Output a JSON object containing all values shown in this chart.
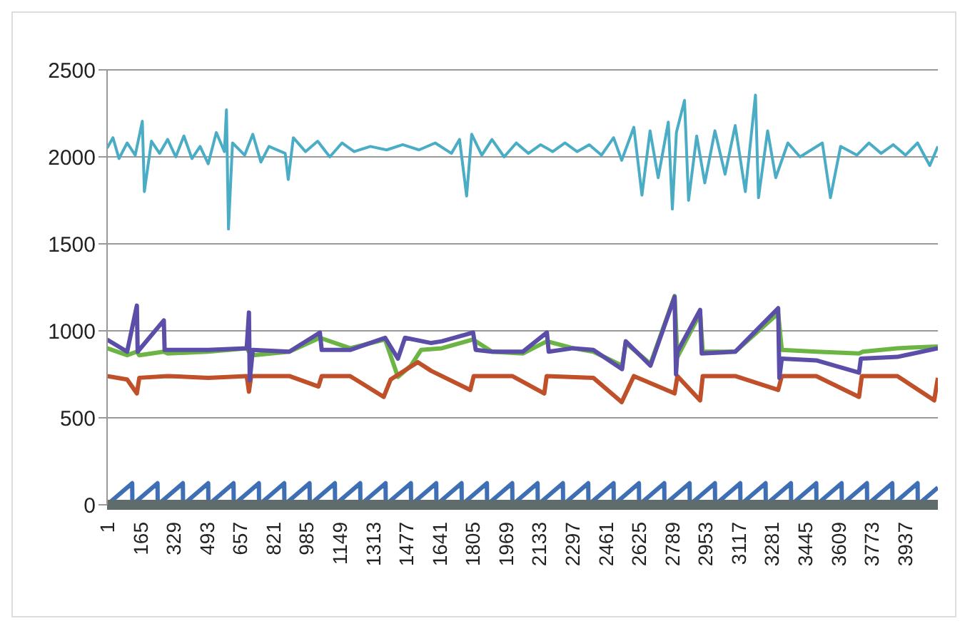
{
  "chart_data": {
    "type": "line",
    "xlim": [
      1,
      4100
    ],
    "xticks": [
      1,
      165,
      329,
      493,
      657,
      821,
      985,
      1149,
      1313,
      1477,
      1641,
      1805,
      1969,
      2133,
      2297,
      2461,
      2625,
      2789,
      2953,
      3117,
      3281,
      3445,
      3609,
      3773,
      3937
    ],
    "ylim": [
      0,
      2500
    ],
    "yticks": [
      0,
      500,
      1000,
      1500,
      2000,
      2500
    ],
    "grid": "y",
    "legend": false,
    "marker": "none",
    "line_style": "solid",
    "series": [
      {
        "color": "#4bacc6",
        "x": [
          1,
          30,
          60,
          100,
          140,
          175,
          185,
          220,
          260,
          300,
          340,
          380,
          420,
          460,
          500,
          540,
          580,
          590,
          600,
          620,
          680,
          720,
          760,
          800,
          880,
          895,
          920,
          980,
          1040,
          1100,
          1160,
          1220,
          1300,
          1380,
          1460,
          1540,
          1620,
          1700,
          1740,
          1775,
          1800,
          1850,
          1900,
          1960,
          2020,
          2080,
          2140,
          2200,
          2260,
          2320,
          2380,
          2440,
          2500,
          2540,
          2600,
          2640,
          2680,
          2720,
          2770,
          2790,
          2810,
          2850,
          2870,
          2910,
          2950,
          3000,
          3050,
          3100,
          3150,
          3200,
          3215,
          3260,
          3300,
          3360,
          3420,
          3530,
          3570,
          3620,
          3700,
          3760,
          3820,
          3880,
          3940,
          4000,
          4060,
          4100
        ],
        "values": [
          2050,
          2110,
          1990,
          2080,
          2010,
          2205,
          1800,
          2090,
          2020,
          2100,
          2000,
          2120,
          1990,
          2060,
          1960,
          2140,
          2030,
          2270,
          1585,
          2080,
          2010,
          2130,
          1970,
          2060,
          2020,
          1870,
          2110,
          2030,
          2090,
          2000,
          2080,
          2030,
          2060,
          2040,
          2070,
          2040,
          2080,
          2020,
          2100,
          1775,
          2130,
          2010,
          2100,
          2000,
          2080,
          2020,
          2070,
          2030,
          2080,
          2030,
          2070,
          2010,
          2110,
          1980,
          2170,
          1780,
          2150,
          1880,
          2200,
          1700,
          2140,
          2325,
          1750,
          2120,
          1850,
          2150,
          1900,
          2180,
          1800,
          2355,
          1765,
          2150,
          1880,
          2080,
          2000,
          2080,
          1765,
          2060,
          2010,
          2080,
          2020,
          2070,
          2010,
          2080,
          1950,
          2060
        ]
      },
      {
        "color": "#6cb444",
        "x": [
          1,
          100,
          148,
          160,
          281,
          300,
          500,
          690,
          701,
          720,
          900,
          1051,
          1200,
          1373,
          1436,
          1500,
          1550,
          1653,
          1807,
          1900,
          2052,
          2171,
          2300,
          2400,
          2542,
          2560,
          2682,
          2801,
          2815,
          2927,
          2940,
          3100,
          3312,
          3330,
          3500,
          3711,
          3730,
          3900,
          4100
        ],
        "values": [
          900,
          860,
          880,
          860,
          880,
          870,
          880,
          900,
          880,
          860,
          880,
          960,
          900,
          950,
          735,
          800,
          890,
          900,
          950,
          880,
          870,
          940,
          900,
          880,
          800,
          930,
          810,
          1200,
          850,
          1100,
          880,
          880,
          1100,
          890,
          880,
          870,
          880,
          900,
          910
        ]
      },
      {
        "color": "#c0502a",
        "x": [
          1,
          100,
          148,
          160,
          300,
          500,
          690,
          701,
          712,
          900,
          1044,
          1060,
          1200,
          1366,
          1400,
          1534,
          1600,
          1793,
          1810,
          2000,
          2158,
          2170,
          2400,
          2540,
          2600,
          2801,
          2815,
          2927,
          2940,
          3100,
          3312,
          3330,
          3500,
          3711,
          3725,
          3900,
          4082,
          4100
        ],
        "values": [
          740,
          720,
          640,
          730,
          740,
          730,
          740,
          650,
          740,
          740,
          680,
          740,
          740,
          620,
          720,
          820,
          770,
          660,
          740,
          740,
          640,
          740,
          730,
          590,
          740,
          640,
          740,
          600,
          740,
          740,
          660,
          740,
          740,
          620,
          740,
          740,
          600,
          730
        ]
      },
      {
        "color": "#5b4ea8",
        "x": [
          1,
          100,
          148,
          152,
          281,
          285,
          500,
          690,
          701,
          705,
          720,
          900,
          1051,
          1060,
          1200,
          1373,
          1436,
          1471,
          1600,
          1653,
          1807,
          1820,
          1900,
          2052,
          2171,
          2180,
          2300,
          2400,
          2542,
          2560,
          2682,
          2801,
          2808,
          2815,
          2927,
          2935,
          3100,
          3312,
          3318,
          3330,
          3500,
          3711,
          3720,
          3900,
          4100
        ],
        "values": [
          950,
          880,
          1145,
          880,
          1060,
          890,
          890,
          900,
          1105,
          715,
          890,
          880,
          990,
          890,
          890,
          960,
          840,
          960,
          930,
          940,
          990,
          890,
          880,
          880,
          990,
          880,
          900,
          890,
          780,
          940,
          800,
          1195,
          750,
          880,
          1120,
          870,
          880,
          1130,
          730,
          840,
          830,
          760,
          840,
          850,
          900
        ]
      },
      {
        "color": "#3e6fb4",
        "x": [
          1,
          125,
          126,
          250,
          251,
          375,
          376,
          500,
          501,
          625,
          626,
          750,
          751,
          875,
          876,
          1000,
          1001,
          1125,
          1126,
          1250,
          1251,
          1375,
          1376,
          1500,
          1501,
          1625,
          1626,
          1750,
          1751,
          1875,
          1876,
          2000,
          2001,
          2125,
          2126,
          2250,
          2251,
          2375,
          2376,
          2500,
          2501,
          2625,
          2626,
          2750,
          2751,
          2875,
          2876,
          3000,
          3001,
          3125,
          3126,
          3250,
          3251,
          3375,
          3376,
          3500,
          3501,
          3625,
          3626,
          3750,
          3751,
          3875,
          3876,
          4000,
          4001,
          4100
        ],
        "values": [
          0,
          124,
          0,
          124,
          0,
          124,
          0,
          124,
          0,
          124,
          0,
          124,
          0,
          124,
          0,
          124,
          0,
          124,
          0,
          124,
          0,
          124,
          0,
          124,
          0,
          124,
          0,
          124,
          0,
          124,
          0,
          124,
          0,
          124,
          0,
          124,
          0,
          124,
          0,
          124,
          0,
          124,
          0,
          124,
          0,
          124,
          0,
          124,
          0,
          124,
          0,
          124,
          0,
          124,
          0,
          124,
          0,
          124,
          0,
          124,
          0,
          124,
          0,
          124,
          0,
          99
        ]
      }
    ]
  }
}
